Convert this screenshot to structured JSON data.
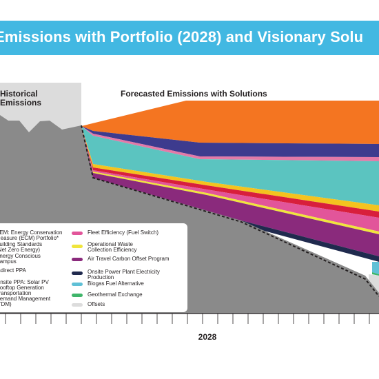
{
  "title": "Emissions with Portfolio (2028) and Visionary Solu",
  "colors": {
    "banner": "#42b8e2",
    "historical_shade": "#dcdcdc",
    "gray_area": "#8a8a8a",
    "axis": "#231f20"
  },
  "chart_data": {
    "type": "area",
    "x_tick_labels": [
      "2028"
    ],
    "annotations": [
      "Historical Emissions",
      "Forecasted Emissions with Solutions"
    ],
    "legend": [
      {
        "label": "SEM: Energy Conservation Measure (ECM) Portfolio*",
        "color": "#f47521",
        "column": "left"
      },
      {
        "label": "Building Standards (Net Zero Energy)",
        "color": "#3d3b8e",
        "column": "left"
      },
      {
        "label": "Energy Conscious Campus",
        "color": "#e37aa8",
        "column": "left"
      },
      {
        "label": "Indirect PPA",
        "color": "#5bc4c0",
        "column": "left"
      },
      {
        "label": "Onsite PPA: Solar PV Rooftop Generation",
        "color": "#f4c31f",
        "column": "left"
      },
      {
        "label": "Transportation Demand Management (TDM)",
        "color": "#d81f3c",
        "column": "left"
      },
      {
        "label": "Fleet Efficiency (Fuel Switch)",
        "color": "#e2559a",
        "column": "right"
      },
      {
        "label": "Operational Waste Collection Efficiency",
        "color": "#f0e53c",
        "column": "right"
      },
      {
        "label": "Air Travel Carbon Offset Program",
        "color": "#8a2a7c",
        "column": "right"
      },
      {
        "label": "Onsite Power Plant Electricity Production",
        "color": "#202a4e",
        "column": "right"
      },
      {
        "label": "Biogas Fuel Alternative",
        "color": "#5fc0d6",
        "column": "right"
      },
      {
        "label": "Geothermal Exchange",
        "color": "#3fb56a",
        "column": "right"
      },
      {
        "label": "Offsets",
        "color": "#dcdcdc",
        "column": "right"
      }
    ],
    "areas": [
      {
        "name": "SEM: Energy Conservation Measure (ECM) Portfolio*",
        "color": "#f47521",
        "top": [
          [
            118,
            183
          ],
          [
            270,
            146
          ],
          [
            550,
            146
          ]
        ],
        "bottom": [
          [
            550,
            209
          ],
          [
            290,
            207
          ],
          [
            135,
            190
          ],
          [
            118,
            183
          ]
        ]
      },
      {
        "name": "Building Standards (Net Zero Energy)",
        "color": "#3d3b8e",
        "top": [
          [
            118,
            183
          ],
          [
            135,
            190
          ],
          [
            290,
            207
          ],
          [
            550,
            209
          ]
        ],
        "bottom": [
          [
            550,
            228
          ],
          [
            290,
            227
          ],
          [
            135,
            194
          ],
          [
            118,
            183
          ]
        ]
      },
      {
        "name": "Energy Conscious Campus",
        "color": "#e37aa8",
        "top": [
          [
            118,
            183
          ],
          [
            135,
            194
          ],
          [
            290,
            227
          ],
          [
            550,
            228
          ]
        ],
        "bottom": [
          [
            550,
            234
          ],
          [
            290,
            231
          ],
          [
            135,
            197
          ],
          [
            118,
            183
          ]
        ]
      },
      {
        "name": "Indirect PPA",
        "color": "#5bc4c0",
        "top": [
          [
            118,
            183
          ],
          [
            135,
            197
          ],
          [
            290,
            231
          ],
          [
            550,
            234
          ]
        ],
        "bottom": [
          [
            550,
            298
          ],
          [
            300,
            264
          ],
          [
            135,
            238
          ],
          [
            118,
            183
          ]
        ]
      },
      {
        "name": "Onsite PPA: Solar PV Rooftop Generation",
        "color": "#f4c31f",
        "top": [
          [
            118,
            183
          ],
          [
            135,
            238
          ],
          [
            300,
            264
          ],
          [
            550,
            298
          ]
        ],
        "bottom": [
          [
            550,
            307
          ],
          [
            300,
            269
          ],
          [
            135,
            243
          ],
          [
            118,
            183
          ]
        ]
      },
      {
        "name": "Transportation Demand Management (TDM)",
        "color": "#d81f3c",
        "top": [
          [
            118,
            183
          ],
          [
            135,
            243
          ],
          [
            300,
            269
          ],
          [
            550,
            307
          ]
        ],
        "bottom": [
          [
            550,
            316
          ],
          [
            300,
            275
          ],
          [
            135,
            247
          ],
          [
            118,
            183
          ]
        ]
      },
      {
        "name": "Fleet Efficiency (Fuel Switch)",
        "color": "#e2559a",
        "top": [
          [
            118,
            183
          ],
          [
            135,
            247
          ],
          [
            300,
            275
          ],
          [
            550,
            316
          ]
        ],
        "bottom": [
          [
            550,
            336
          ],
          [
            300,
            280
          ],
          [
            135,
            249
          ],
          [
            118,
            183
          ]
        ]
      },
      {
        "name": "Operational Waste Collection Efficiency",
        "color": "#f0e53c",
        "top": [
          [
            118,
            183
          ],
          [
            135,
            249
          ],
          [
            300,
            280
          ],
          [
            550,
            336
          ]
        ],
        "bottom": [
          [
            550,
            340
          ],
          [
            300,
            283
          ],
          [
            135,
            251
          ],
          [
            118,
            183
          ]
        ]
      },
      {
        "name": "Air Travel Carbon Offset Program",
        "color": "#8a2a7c",
        "top": [
          [
            118,
            183
          ],
          [
            135,
            251
          ],
          [
            300,
            283
          ],
          [
            550,
            340
          ]
        ],
        "bottom": [
          [
            550,
            372
          ],
          [
            350,
            320
          ],
          [
            135,
            270
          ],
          [
            118,
            183
          ]
        ]
      },
      {
        "name": "Onsite Power Plant Electricity Production",
        "color": "#202a4e",
        "top": [
          [
            118,
            183
          ],
          [
            135,
            270
          ],
          [
            350,
            320
          ],
          [
            550,
            372
          ]
        ],
        "bottom": [
          [
            550,
            380
          ],
          [
            350,
            326
          ],
          [
            135,
            272
          ],
          [
            118,
            183
          ]
        ]
      },
      {
        "name": "Biogas Fuel Alternative",
        "color": "#5fc0d6",
        "top": [
          [
            540,
            380
          ],
          [
            550,
            380
          ]
        ],
        "bottom": [
          [
            550,
            398
          ],
          [
            540,
            395
          ]
        ]
      },
      {
        "name": "Geothermal Exchange",
        "color": "#3fb56a",
        "top": [
          [
            540,
            395
          ],
          [
            550,
            398
          ]
        ],
        "bottom": [
          [
            550,
            400
          ],
          [
            540,
            398
          ]
        ]
      },
      {
        "name": "Offsets",
        "color": "#dcdcdc",
        "top": [
          [
            535,
            398
          ],
          [
            550,
            400
          ]
        ],
        "bottom": [
          [
            550,
            430
          ],
          [
            535,
            418
          ]
        ]
      }
    ]
  }
}
